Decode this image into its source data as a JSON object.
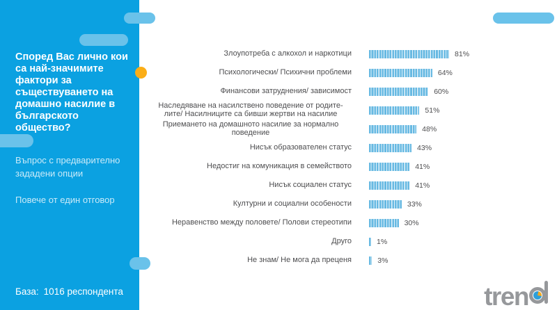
{
  "panel": {
    "title": "Според Вас лично кои са най-значимите фактори за съществуването на домашно насилие в българското общество?",
    "note1": "Въпрос с предварително зададени опции",
    "note2": "Повече от един отговор",
    "base_label": "База:",
    "base_value": "1016 респондента"
  },
  "chart_data": {
    "type": "bar",
    "orientation": "horizontal",
    "title": "Според Вас лично кои са най-значимите фактори за съществуването на домашно насилие в българското общество?",
    "categories": [
      "Злоупотреба с алкохол и наркотици",
      "Психологически/ Психични проблеми",
      "Финансови затруднения/ зависимост",
      "Наследяване на насилствено поведение от родите-лите/ Насилниците са бивши жертви на насилие",
      "Приемането на домашното насилие за нормално поведение",
      "Нисък образователен статус",
      "Недостиг на комуникация в семейството",
      "Нисък социален статус",
      "Културни и социални особености",
      "Неравенство между половете/ Полови стереотипи",
      "Друго",
      "Не знам/ Не мога да преценя"
    ],
    "values": [
      81,
      64,
      60,
      51,
      48,
      43,
      41,
      41,
      33,
      30,
      1,
      3
    ],
    "unit": "%",
    "xlim": [
      0,
      100
    ],
    "grid": false,
    "legend": false,
    "value_labels": true,
    "bar_style": "striped-vertical"
  },
  "logo": {
    "text_prefix": "tren",
    "full_text": "trend"
  },
  "colors": {
    "panel_blue": "#0BA1E1",
    "pill_blue": "#6AC2EA",
    "accent_orange": "#FBAE17",
    "bar_blue": "#67B9E2",
    "bar_gap": "#E4F3FB",
    "text_dark": "#4D4D4F",
    "logo_gray": "#96989B"
  }
}
